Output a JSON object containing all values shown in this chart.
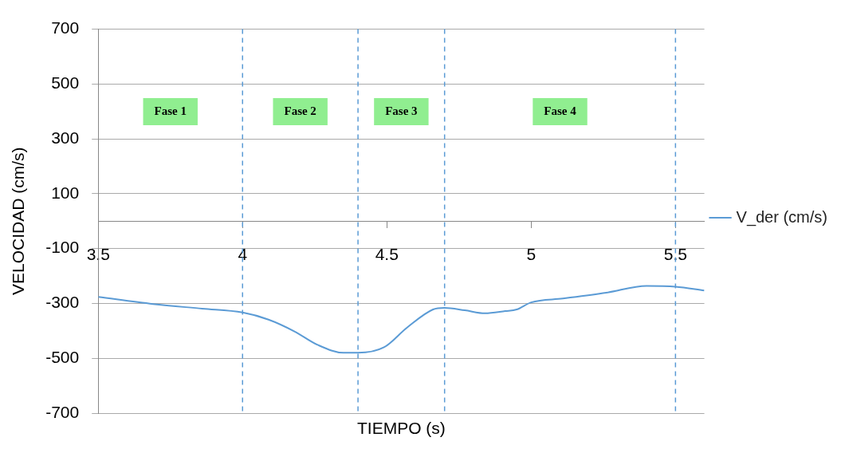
{
  "chart_data": {
    "type": "line",
    "xlabel": "TIEMPO (s)",
    "ylabel": "VELOCIDAD (cm/s)",
    "x": [
      3.5,
      3.69,
      3.86,
      4.0,
      4.09,
      4.18,
      4.26,
      4.35,
      4.4,
      4.49,
      4.57,
      4.66,
      4.7,
      4.77,
      4.84,
      4.91,
      4.95,
      5.0,
      5.11,
      5.26,
      5.4,
      5.5,
      5.6
    ],
    "series": [
      {
        "name": "V_der (cm/s)",
        "color": "#5b9bd5",
        "values": [
          -276,
          -302,
          -319,
          -333,
          -359,
          -402,
          -451,
          -480,
          -480,
          -460,
          -388,
          -322,
          -316,
          -325,
          -336,
          -328,
          -322,
          -296,
          -282,
          -261,
          -236,
          -239,
          -253
        ]
      }
    ],
    "xlim": [
      3.5,
      5.6
    ],
    "xticks": [
      3.5,
      4,
      4.5,
      5,
      5.5
    ],
    "ylim": [
      -700,
      700
    ],
    "yticks": [
      -700,
      -500,
      -300,
      -100,
      100,
      300,
      500,
      700
    ],
    "grid": "y",
    "legend": "right",
    "marker": "none",
    "line_style": "solid",
    "ref_lines": [
      {
        "axis": "x",
        "value": 4,
        "color": "#5b9bd5",
        "line_style": "dashed"
      },
      {
        "axis": "x",
        "value": 4.4,
        "color": "#5b9bd5",
        "line_style": "dashed"
      },
      {
        "axis": "x",
        "value": 4.7,
        "color": "#5b9bd5",
        "line_style": "dashed"
      },
      {
        "axis": "x",
        "value": 5.5,
        "color": "#5b9bd5",
        "line_style": "dashed"
      }
    ],
    "annotations": [
      "Fase 1",
      "Fase 2",
      "Fase 3",
      "Fase 4"
    ]
  }
}
